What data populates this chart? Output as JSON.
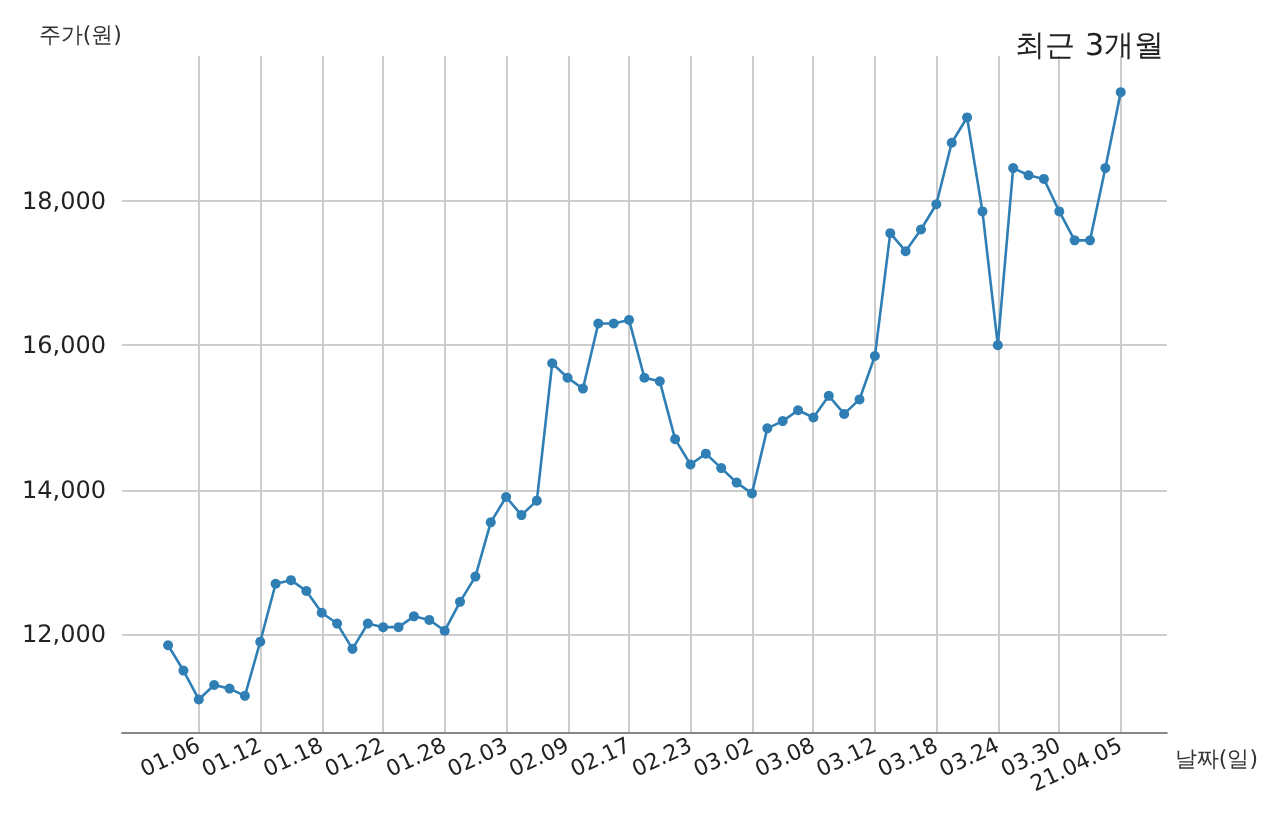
{
  "chart_data": {
    "type": "line",
    "title": "최근 3개월",
    "xlabel": "날짜(일)",
    "ylabel": "주가(원)",
    "categories": [
      null,
      null,
      "01.06",
      null,
      null,
      null,
      "01.12",
      null,
      null,
      null,
      "01.18",
      null,
      null,
      null,
      "01.22",
      null,
      null,
      null,
      "01.28",
      null,
      null,
      null,
      "02.03",
      null,
      null,
      null,
      "02.09",
      null,
      null,
      null,
      "02.17",
      null,
      null,
      null,
      "02.23",
      null,
      null,
      null,
      "03.02",
      null,
      null,
      null,
      "03.08",
      null,
      null,
      null,
      "03.12",
      null,
      null,
      null,
      "03.18",
      null,
      null,
      null,
      "03.24",
      null,
      null,
      null,
      "03.30",
      null,
      null,
      null,
      "21.04.05"
    ],
    "series": [
      {
        "color": "#2f7fb5",
        "values": [
          11850,
          11500,
          11100,
          11300,
          11250,
          11150,
          11900,
          12700,
          12750,
          12600,
          12300,
          12150,
          11800,
          12150,
          12100,
          12100,
          12250,
          12200,
          12050,
          12450,
          12800,
          13550,
          13900,
          13650,
          13850,
          15750,
          15550,
          15400,
          16300,
          16300,
          16350,
          15550,
          15500,
          14700,
          14350,
          14500,
          14300,
          14100,
          13950,
          14850,
          14950,
          15100,
          15000,
          15300,
          15050,
          15250,
          15850,
          17550,
          17300,
          17600,
          17950,
          18800,
          19150,
          17850,
          16000,
          18450,
          18350,
          18300,
          17850,
          17450,
          17450,
          18450,
          19500
        ]
      }
    ],
    "ylim": [
      10650,
      20000
    ],
    "yticks": [
      {
        "value": 12000,
        "label": "12,000"
      },
      {
        "value": 14000,
        "label": "14,000"
      },
      {
        "value": 16000,
        "label": "16,000"
      },
      {
        "value": 18000,
        "label": "18,000"
      }
    ],
    "grid": true,
    "marker": "circle",
    "line_style": "solid"
  }
}
